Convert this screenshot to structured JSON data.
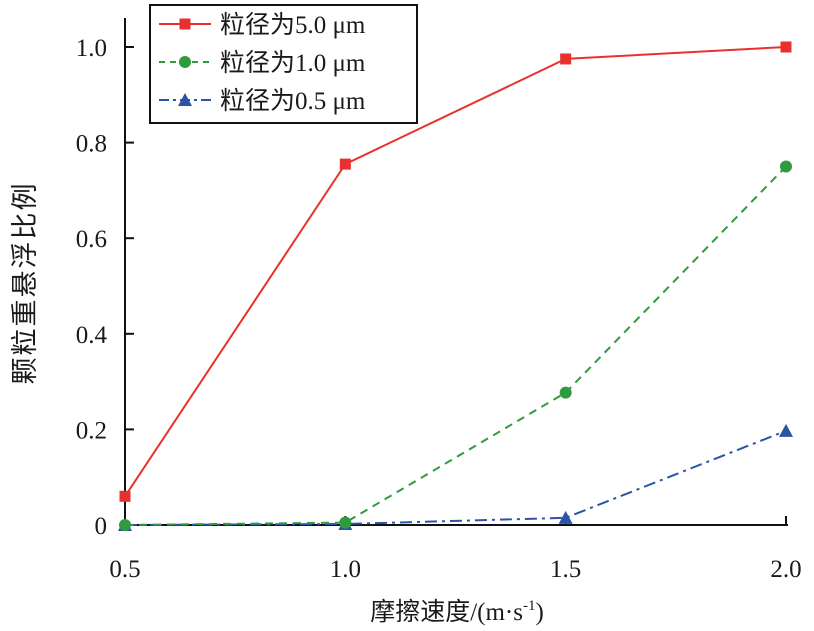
{
  "chart_data": {
    "type": "line",
    "xlabel": "摩擦速度/(m·s",
    "xlabel_sup": "-1",
    "xlabel_close": ")",
    "ylabel": "颗粒重悬浮比例",
    "x": [
      0.5,
      1.0,
      1.5,
      2.0
    ],
    "x_tick_labels": [
      "0.5",
      "1.0",
      "1.5",
      "2.0"
    ],
    "y_tick_labels": [
      "0",
      "0.2",
      "0.4",
      "0.6",
      "0.8",
      "1.0"
    ],
    "xlim": [
      0.5,
      2.0
    ],
    "ylim": [
      0,
      1.0
    ],
    "grid": false,
    "legend_position": "top-left",
    "series": [
      {
        "name": "粒径为5.0 μm",
        "values": [
          0.06,
          0.755,
          0.975,
          1.0
        ],
        "color": "#e8312f",
        "marker": "square",
        "dash": "solid"
      },
      {
        "name": "粒径为1.0 μm",
        "values": [
          0.0,
          0.005,
          0.277,
          0.75
        ],
        "color": "#2f9a3e",
        "marker": "circle",
        "dash": "dashed"
      },
      {
        "name": "粒径为0.5 μm",
        "values": [
          0.0,
          0.002,
          0.015,
          0.197
        ],
        "color": "#2a55a6",
        "marker": "triangle",
        "dash": "dashdot"
      }
    ]
  }
}
